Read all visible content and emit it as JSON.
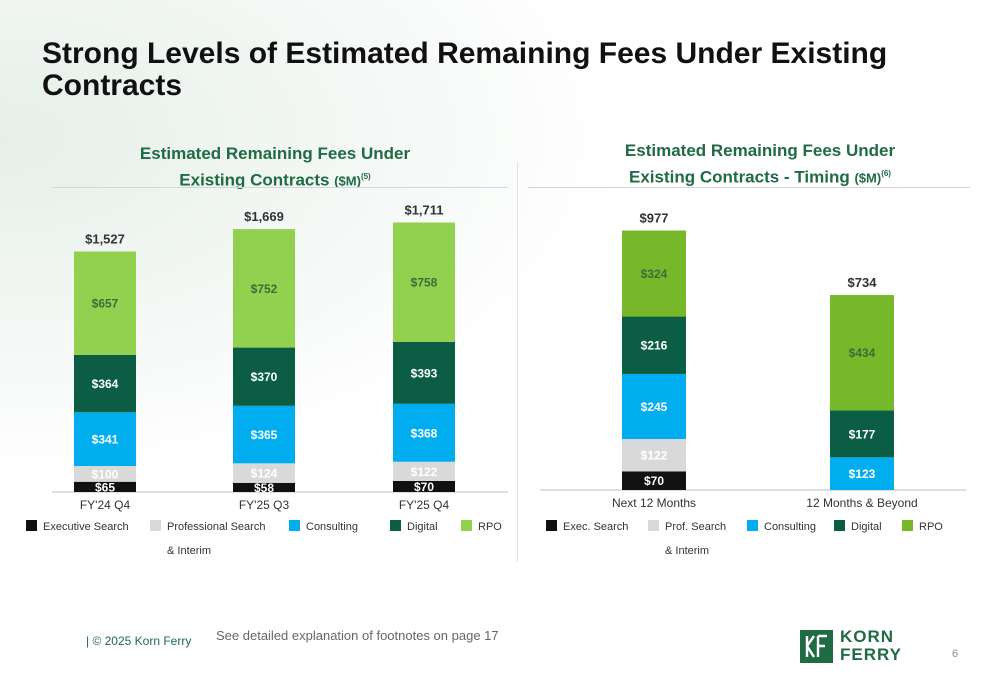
{
  "page": {
    "title": "Strong Levels of Estimated Remaining Fees Under Existing Contracts",
    "copyright": "| © 2025 Korn Ferry",
    "footnote_note": "See detailed explanation of footnotes on page 17",
    "page_number": "6",
    "logo": {
      "line1": "KORN",
      "line2": "FERRY"
    }
  },
  "chart_left": {
    "title_line1": "Estimated Remaining Fees Under",
    "title_line2": "Existing Contracts",
    "unit": "($M)",
    "footnote": "(5)"
  },
  "chart_right": {
    "title_line1": "Estimated Remaining Fees Under",
    "title_line2": "Existing Contracts - Timing",
    "unit": "($M)",
    "footnote": "(6)"
  },
  "chart_data": [
    {
      "type": "bar",
      "stacked": true,
      "categories": [
        "FY'24 Q4",
        "FY'25 Q3",
        "FY'25 Q4"
      ],
      "series": [
        {
          "name": "Executive Search",
          "values": [
            65,
            58,
            70
          ],
          "labels": [
            "$65",
            "$58",
            "$70"
          ],
          "color": "#111111",
          "label_color": "#ffffff"
        },
        {
          "name": "Professional Search & Interim",
          "values": [
            100,
            124,
            122
          ],
          "labels": [
            "$100",
            "$124",
            "$122"
          ],
          "color": "#d9d9d9",
          "label_color": "#ffffff"
        },
        {
          "name": "Consulting",
          "values": [
            341,
            365,
            368
          ],
          "labels": [
            "$341",
            "$365",
            "$368"
          ],
          "color": "#00aeef",
          "label_color": "#ffffff"
        },
        {
          "name": "Digital",
          "values": [
            364,
            370,
            393
          ],
          "labels": [
            "$364",
            "$370",
            "$393"
          ],
          "color": "#0b5e44",
          "label_color": "#ffffff"
        },
        {
          "name": "RPO",
          "values": [
            657,
            752,
            758
          ],
          "labels": [
            "$657",
            "$752",
            "$758"
          ],
          "color": "#92d050",
          "label_color": "#3f6b3a"
        }
      ],
      "totals": [
        "$1,527",
        "$1,669",
        "$1,711"
      ],
      "legend": [
        {
          "label": "Executive Search",
          "color": "#111111"
        },
        {
          "label": "Professional Search",
          "label2": "& Interim",
          "color": "#d9d9d9"
        },
        {
          "label": "Consulting",
          "color": "#00aeef"
        },
        {
          "label": "Digital",
          "color": "#0b5e44"
        },
        {
          "label": "RPO",
          "color": "#92d050"
        }
      ],
      "legend_position": "bottom",
      "grid": false
    },
    {
      "type": "bar",
      "stacked": true,
      "categories": [
        "Next 12 Months",
        "12 Months & Beyond"
      ],
      "series": [
        {
          "name": "Exec. Search",
          "values": [
            70,
            null
          ],
          "labels": [
            "$70",
            ""
          ],
          "color": "#111111",
          "label_color": "#ffffff"
        },
        {
          "name": "Prof. Search & Interim",
          "values": [
            122,
            null
          ],
          "labels": [
            "$122",
            ""
          ],
          "color": "#d9d9d9",
          "label_color": "#ffffff"
        },
        {
          "name": "Consulting",
          "values": [
            245,
            123
          ],
          "labels": [
            "$245",
            "$123"
          ],
          "color": "#00aeef",
          "label_color": "#ffffff"
        },
        {
          "name": "Digital",
          "values": [
            216,
            177
          ],
          "labels": [
            "$216",
            "$177"
          ],
          "color": "#0b5e44",
          "label_color": "#ffffff"
        },
        {
          "name": "RPO",
          "values": [
            324,
            434
          ],
          "labels": [
            "$324",
            "$434"
          ],
          "color": "#76b82a",
          "label_color": "#3f6b3a"
        }
      ],
      "totals": [
        "$977",
        "$734"
      ],
      "legend": [
        {
          "label": "Exec. Search",
          "color": "#111111"
        },
        {
          "label": "Prof. Search",
          "label2": "& Interim",
          "color": "#d9d9d9"
        },
        {
          "label": "Consulting",
          "color": "#00aeef"
        },
        {
          "label": "Digital",
          "color": "#0b5e44"
        },
        {
          "label": "RPO",
          "color": "#76b82a"
        }
      ],
      "legend_position": "bottom",
      "grid": false
    }
  ]
}
